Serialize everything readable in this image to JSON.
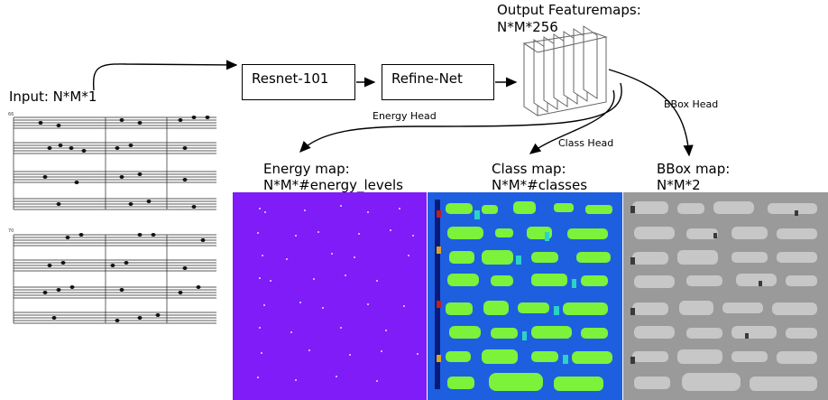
{
  "input_label": "Input: N*M*1",
  "sheet": {
    "measure_top": "66",
    "measure_bottom": "70"
  },
  "boxes": {
    "resnet": "Resnet-101",
    "refinenet": "Refine-Net"
  },
  "output": {
    "line1": "Output Featuremaps:",
    "line2": "N*M*256"
  },
  "heads": {
    "energy": "Energy Head",
    "class": "Class Head",
    "bbox": "BBox Head"
  },
  "maps": {
    "energy": {
      "title": "Energy map:",
      "dims": "N*M*#energy_levels"
    },
    "class": {
      "title": "Class map:",
      "dims": "N*M*#classes"
    },
    "bbox": {
      "title": "BBox map:",
      "dims": "N*M*2"
    }
  }
}
